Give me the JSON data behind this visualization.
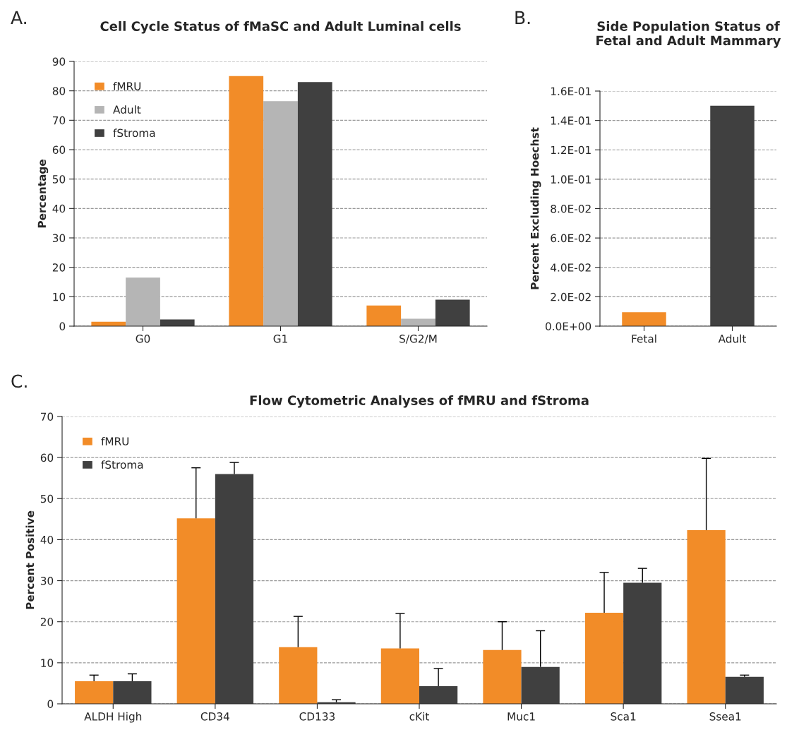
{
  "chart_data": [
    {
      "type": "bar",
      "title": "Cell Cycle Status of fMaSC and Adult Luminal cells",
      "ylabel": "Percentage",
      "annotations": [
        "A."
      ],
      "categories": [
        "G0",
        "G1",
        "S/G2/M"
      ],
      "series": [
        {
          "name": "fMRU",
          "color": "#f28c28",
          "values": [
            1.5,
            85,
            7
          ]
        },
        {
          "name": "Adult",
          "color": "#b5b5b5",
          "values": [
            16.5,
            76.5,
            2.5
          ]
        },
        {
          "name": "fStroma",
          "color": "#404040",
          "values": [
            2.3,
            83,
            9
          ]
        }
      ],
      "ylim": [
        0,
        90
      ],
      "yticks": [
        0,
        10,
        20,
        30,
        40,
        50,
        60,
        70,
        80,
        90
      ],
      "grid": "y",
      "legend": "top left"
    },
    {
      "type": "bar",
      "title": "Side Population Status of Fetal and Adult Mammary",
      "ylabel": "Percent Excluding Hoechst",
      "annotations": [
        "B."
      ],
      "categories": [
        "Fetal",
        "Adult"
      ],
      "values": [
        0.0095,
        0.15
      ],
      "colors": [
        "#f28c28",
        "#404040"
      ],
      "ylim": [
        0,
        0.16
      ],
      "yticks": [
        {
          "value": 0,
          "label": "0.0E+00"
        },
        {
          "value": 0.02,
          "label": "2.0E-02"
        },
        {
          "value": 0.04,
          "label": "4.0E-02"
        },
        {
          "value": 0.06,
          "label": "6.0E-02"
        },
        {
          "value": 0.08,
          "label": "8.0E-02"
        },
        {
          "value": 0.1,
          "label": "1.0E-01"
        },
        {
          "value": 0.12,
          "label": "1.2E-01"
        },
        {
          "value": 0.14,
          "label": "1.4E-01"
        },
        {
          "value": 0.16,
          "label": "1.6E-01"
        }
      ],
      "grid": "y"
    },
    {
      "type": "bar",
      "title": "Flow Cytometric Analyses of fMRU and fStroma",
      "ylabel": "Percent Positive",
      "annotations": [
        "C."
      ],
      "categories": [
        "ALDH High",
        "CD34",
        "CD133",
        "cKit",
        "Muc1",
        "Sca1",
        "Ssea1"
      ],
      "series": [
        {
          "name": "fMRU",
          "color": "#f28c28",
          "values": [
            5.5,
            45.2,
            13.8,
            13.5,
            13.1,
            22.2,
            42.3
          ],
          "errors": [
            [
              5.5,
              7
            ],
            [
              45.2,
              57.5
            ],
            [
              13.8,
              21.3
            ],
            [
              13.5,
              22
            ],
            [
              13.1,
              20
            ],
            [
              22.2,
              32
            ],
            [
              42.3,
              59.8
            ]
          ]
        },
        {
          "name": "fStroma",
          "color": "#404040",
          "values": [
            5.5,
            56,
            0.4,
            4.3,
            9,
            29.5,
            6.6
          ],
          "errors": [
            [
              5.5,
              7.3
            ],
            [
              56,
              58.8
            ],
            [
              0.4,
              1.0
            ],
            [
              4.3,
              8.6
            ],
            [
              9,
              17.8
            ],
            [
              29.5,
              33
            ],
            [
              6.6,
              7.0
            ]
          ]
        }
      ],
      "ylim": [
        0,
        70
      ],
      "yticks": [
        0,
        10,
        20,
        30,
        40,
        50,
        60,
        70
      ],
      "grid": "y",
      "legend": "top left"
    }
  ]
}
